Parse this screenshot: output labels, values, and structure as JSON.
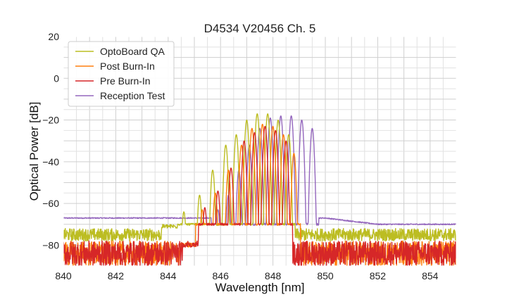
{
  "chart_data": {
    "type": "line",
    "title": "D4534 V20456 Ch. 5",
    "xlabel": "Wavelength [nm]",
    "ylabel": "Optical Power [dB]",
    "xlim": [
      840,
      855
    ],
    "ylim": [
      -90,
      20
    ],
    "x_ticks": [
      840,
      842,
      844,
      846,
      848,
      850,
      852,
      854
    ],
    "y_ticks": [
      -80,
      -60,
      -40,
      -20,
      0,
      20
    ],
    "y_tick_labels": [
      "−80",
      "−60",
      "−40",
      "−20",
      "0",
      "20"
    ],
    "grid": true,
    "legend_position": "top-left",
    "series": [
      {
        "name": "OptoBoard QA",
        "color": "#bcbd22",
        "noise_floor": -75,
        "floor_jitter": 3,
        "peaks": [
          [
            844.6,
            -64
          ],
          [
            845.2,
            -56
          ],
          [
            845.7,
            -44
          ],
          [
            846.2,
            -32
          ],
          [
            846.6,
            -27
          ],
          [
            847.0,
            -20
          ],
          [
            847.4,
            -17
          ],
          [
            847.8,
            -17
          ],
          [
            848.2,
            -20
          ],
          [
            848.6,
            -27
          ]
        ]
      },
      {
        "name": "Post Burn-In",
        "color": "#ff7f0e",
        "noise_floor": -84,
        "floor_jitter": 6,
        "peaks": [
          [
            845.3,
            -63
          ],
          [
            845.8,
            -55
          ],
          [
            846.3,
            -44
          ],
          [
            846.8,
            -32
          ],
          [
            847.2,
            -24
          ],
          [
            847.6,
            -22
          ],
          [
            848.0,
            -23
          ],
          [
            848.4,
            -27
          ],
          [
            848.8,
            -36
          ]
        ]
      },
      {
        "name": "Pre Burn-In",
        "color": "#d62728",
        "noise_floor": -84,
        "floor_jitter": 6,
        "peaks": [
          [
            845.4,
            -62
          ],
          [
            845.9,
            -54
          ],
          [
            846.4,
            -43
          ],
          [
            846.9,
            -30
          ],
          [
            847.3,
            -26
          ],
          [
            847.7,
            -23
          ],
          [
            848.1,
            -25
          ],
          [
            848.5,
            -30
          ]
        ]
      },
      {
        "name": "Reception Test",
        "color": "#9467bd",
        "noise_floor": -67,
        "floor_jitter": 0.5,
        "peaks": [
          [
            845.9,
            -63
          ],
          [
            846.3,
            -56
          ],
          [
            846.7,
            -44
          ],
          [
            847.1,
            -32
          ],
          [
            847.5,
            -24
          ],
          [
            847.9,
            -19
          ],
          [
            848.3,
            -18
          ],
          [
            848.7,
            -18
          ],
          [
            849.1,
            -20
          ],
          [
            849.5,
            -24
          ]
        ]
      }
    ]
  }
}
